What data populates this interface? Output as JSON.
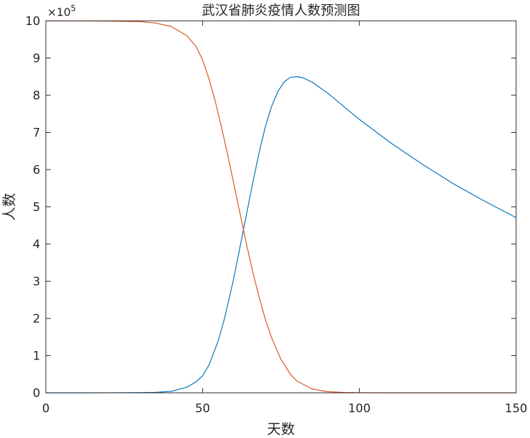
{
  "chart_data": {
    "type": "line",
    "title": "武汉省肺炎疫情人数预测图",
    "xlabel": "天数",
    "ylabel": "人数",
    "xlim": [
      0,
      150
    ],
    "ylim": [
      0,
      10
    ],
    "y_multiplier": {
      "base": "×10",
      "exponent": "5"
    },
    "xticks": [
      "0",
      "50",
      "100",
      "150"
    ],
    "yticks": [
      "0",
      "1",
      "2",
      "3",
      "4",
      "5",
      "6",
      "7",
      "8",
      "9",
      "10"
    ],
    "grid": false,
    "series": [
      {
        "color": "#0072BD",
        "x": [
          0,
          20,
          30,
          35,
          40,
          45,
          48,
          50,
          52,
          55,
          57,
          60,
          62,
          64,
          66,
          68,
          70,
          72,
          74,
          76,
          78,
          80,
          82,
          85,
          90,
          95,
          100,
          110,
          120,
          130,
          140,
          150
        ],
        "y": [
          0.0,
          0.001,
          0.005,
          0.012,
          0.04,
          0.15,
          0.3,
          0.46,
          0.74,
          1.4,
          2.0,
          3.1,
          3.95,
          4.8,
          5.65,
          6.45,
          7.15,
          7.7,
          8.1,
          8.36,
          8.48,
          8.5,
          8.47,
          8.35,
          8.05,
          7.7,
          7.35,
          6.72,
          6.15,
          5.62,
          5.15,
          4.71
        ]
      },
      {
        "color": "#D95319",
        "x": [
          0,
          20,
          30,
          35,
          40,
          45,
          48,
          50,
          52,
          54,
          56,
          58,
          60,
          62,
          64,
          66,
          68,
          70,
          72,
          75,
          78,
          80,
          85,
          90,
          95,
          100,
          110,
          120,
          130,
          140,
          150
        ],
        "y": [
          10,
          9.995,
          9.98,
          9.94,
          9.85,
          9.6,
          9.3,
          8.95,
          8.45,
          7.85,
          7.15,
          6.4,
          5.6,
          4.8,
          4.0,
          3.25,
          2.58,
          1.98,
          1.48,
          0.9,
          0.5,
          0.32,
          0.1,
          0.03,
          0.01,
          0.003,
          0.0,
          0.0,
          0.0,
          0.0,
          0.0
        ]
      }
    ]
  }
}
